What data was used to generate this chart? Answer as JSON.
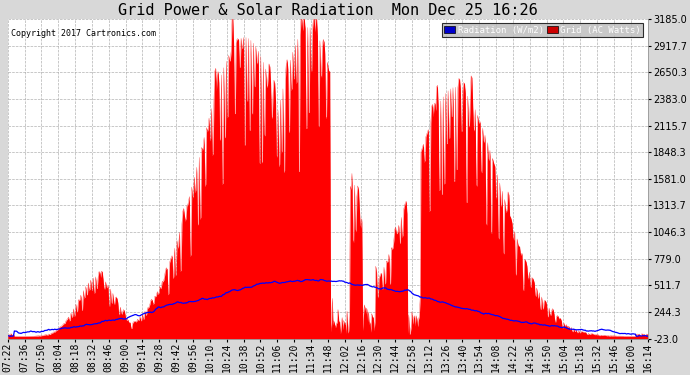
{
  "title": "Grid Power & Solar Radiation  Mon Dec 25 16:26",
  "copyright": "Copyright 2017 Cartronics.com",
  "yticks": [
    -23.0,
    244.3,
    511.7,
    779.0,
    1046.3,
    1313.7,
    1581.0,
    1848.3,
    2115.7,
    2383.0,
    2650.3,
    2917.7,
    3185.0
  ],
  "ymin": -23.0,
  "ymax": 3185.0,
  "grid_color": "#aaaaaa",
  "bg_color": "#d8d8d8",
  "plot_bg": "#ffffff",
  "red_color": "#ff0000",
  "blue_color": "#0000ff",
  "title_fontsize": 11,
  "tick_fontsize": 7,
  "xtick_labels": [
    "07:22",
    "07:36",
    "07:50",
    "08:04",
    "08:18",
    "08:32",
    "08:46",
    "09:00",
    "09:14",
    "09:28",
    "09:42",
    "09:56",
    "10:10",
    "10:24",
    "10:38",
    "10:52",
    "11:06",
    "11:20",
    "11:34",
    "11:48",
    "12:02",
    "12:16",
    "12:30",
    "12:44",
    "12:58",
    "13:12",
    "13:26",
    "13:40",
    "13:54",
    "14:08",
    "14:22",
    "14:36",
    "14:50",
    "15:04",
    "15:18",
    "15:32",
    "15:46",
    "16:00",
    "16:14"
  ]
}
